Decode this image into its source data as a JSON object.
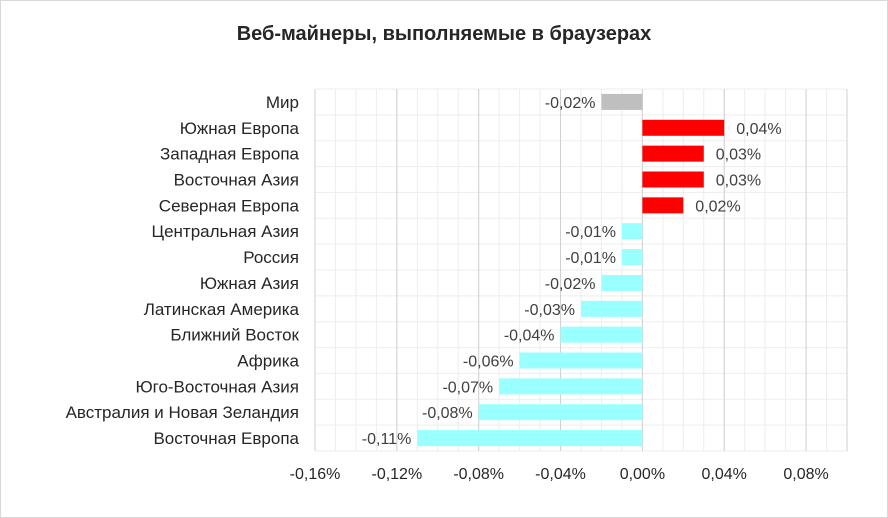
{
  "chart_data": {
    "type": "bar",
    "orientation": "horizontal",
    "title": "Веб-майнеры, выполняемые в браузерах",
    "xlabel": "",
    "ylabel": "",
    "xlim": [
      -0.16,
      0.1
    ],
    "x_ticks": [
      -0.16,
      -0.12,
      -0.08,
      -0.04,
      0.0,
      0.04,
      0.08
    ],
    "x_tick_labels": [
      "-0,16%",
      "-0,12%",
      "-0,08%",
      "-0,04%",
      "0,00%",
      "0,04%",
      "0,08%"
    ],
    "grid": true,
    "legend": "none",
    "categories": [
      "Мир",
      "Южная Европа",
      "Западная Европа",
      "Восточная Азия",
      "Северная Европа",
      "Центральная Азия",
      "Россия",
      "Южная Азия",
      "Латинская Америка",
      "Ближний Восток",
      "Африка",
      "Юго-Восточная Азия",
      "Австралия и Новая Зеландия",
      "Восточная Европа"
    ],
    "values": [
      -0.02,
      0.04,
      0.03,
      0.03,
      0.02,
      -0.01,
      -0.01,
      -0.02,
      -0.03,
      -0.04,
      -0.06,
      -0.07,
      -0.08,
      -0.11
    ],
    "data_labels": [
      "-0,02%",
      "0,04%",
      "0,03%",
      "0,03%",
      "0,02%",
      "-0,01%",
      "-0,01%",
      "-0,02%",
      "-0,03%",
      "-0,04%",
      "-0,06%",
      "-0,07%",
      "-0,08%",
      "-0,11%"
    ],
    "bar_colors": [
      "#bfbfbf",
      "#ff0000",
      "#ff0000",
      "#ff0000",
      "#ff0000",
      "#99ffff",
      "#99ffff",
      "#99ffff",
      "#99ffff",
      "#99ffff",
      "#99ffff",
      "#99ffff",
      "#99ffff",
      "#99ffff"
    ]
  }
}
